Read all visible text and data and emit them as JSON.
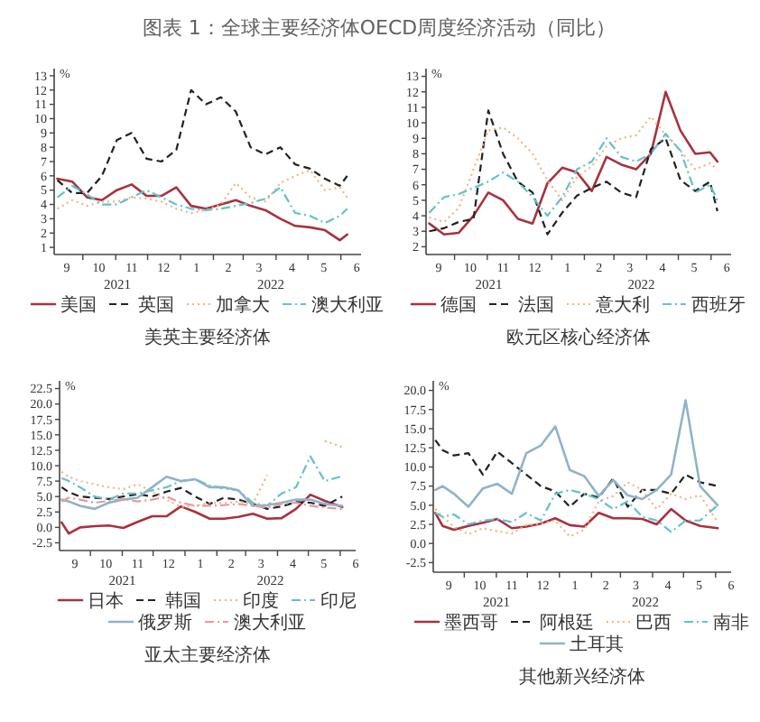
{
  "chart_data": [
    {
      "type": "other",
      "title": "图表 1：全球主要经济体OECD周度经济活动（同比）"
    },
    {
      "type": "line",
      "title": "美英主要经济体",
      "ylabel": "%",
      "legend": "bottom",
      "x": [
        "2021-09-07",
        "2021-09-21",
        "2021-10-05",
        "2021-10-19",
        "2021-11-02",
        "2021-11-16",
        "2021-11-30",
        "2021-12-14",
        "2021-12-28",
        "2022-01-11",
        "2022-01-25",
        "2022-02-08",
        "2022-02-22",
        "2022-03-08",
        "2022-03-22",
        "2022-04-05",
        "2022-04-19",
        "2022-05-03",
        "2022-05-17",
        "2022-05-31",
        "2022-06-07"
      ],
      "xlim": [
        "2021-09-04",
        "2022-06-20"
      ],
      "ylim": [
        0.5,
        13.5
      ],
      "yticks": [
        1,
        2,
        3,
        4,
        5,
        6,
        7,
        8,
        9,
        10,
        11,
        12,
        13
      ],
      "xticks": [
        {
          "value": "2021-09-16",
          "label": "9"
        },
        {
          "value": "2021-10-01",
          "label": null
        },
        {
          "value": "2021-10-16",
          "label": "10"
        },
        {
          "value": "2021-11-01",
          "label": null
        },
        {
          "value": "2021-11-16",
          "label": "11"
        },
        {
          "value": "2021-12-01",
          "label": null
        },
        {
          "value": "2021-12-16",
          "label": "12"
        },
        {
          "value": "2022-01-01",
          "label": null
        },
        {
          "value": "2022-01-16",
          "label": "1"
        },
        {
          "value": "2022-02-01",
          "label": null
        },
        {
          "value": "2022-02-15",
          "label": "2"
        },
        {
          "value": "2022-03-01",
          "label": null
        },
        {
          "value": "2022-03-16",
          "label": "3"
        },
        {
          "value": "2022-04-01",
          "label": null
        },
        {
          "value": "2022-04-16",
          "label": "4"
        },
        {
          "value": "2022-05-01",
          "label": null
        },
        {
          "value": "2022-05-16",
          "label": "5"
        },
        {
          "value": "2022-06-01",
          "label": null
        },
        {
          "value": "2022-06-16",
          "label": "6"
        }
      ],
      "annotations": [
        "2021",
        "2022"
      ],
      "series": [
        {
          "name": "美国",
          "color": "#a8323e",
          "line_style": "solid",
          "values": [
            5.8,
            5.6,
            4.5,
            4.3,
            5.0,
            5.4,
            4.6,
            4.6,
            5.2,
            3.9,
            3.7,
            4.0,
            4.3,
            3.9,
            3.6,
            3.0,
            2.5,
            2.4,
            2.2,
            1.5,
            1.9
          ]
        },
        {
          "name": "英国",
          "color": "#222222",
          "line_style": "dashed",
          "values": [
            5.7,
            4.8,
            4.8,
            6.0,
            8.5,
            9.0,
            7.2,
            7.0,
            7.8,
            12.0,
            11.0,
            11.5,
            10.5,
            8.0,
            7.5,
            8.0,
            6.8,
            6.5,
            5.8,
            5.3,
            6.0
          ]
        },
        {
          "name": "加拿大",
          "color": "#f2b47e",
          "line_style": "dotted",
          "values": [
            3.7,
            4.3,
            3.9,
            4.2,
            4.2,
            4.5,
            4.4,
            4.2,
            3.7,
            3.4,
            3.6,
            4.0,
            5.5,
            4.5,
            4.2,
            5.5,
            6.0,
            6.4,
            5.0,
            5.2,
            4.5
          ]
        },
        {
          "name": "澳大利亚",
          "color": "#62c3c9",
          "line_style": "dashdot",
          "values": [
            4.5,
            5.3,
            4.7,
            4.0,
            4.0,
            4.5,
            5.0,
            4.5,
            4.0,
            3.7,
            3.6,
            3.7,
            3.9,
            4.1,
            4.4,
            5.2,
            3.4,
            3.2,
            2.7,
            3.2,
            3.7
          ]
        }
      ]
    },
    {
      "type": "line",
      "title": "欧元区核心经济体",
      "ylabel": "%",
      "legend": "bottom",
      "x": [
        "2021-09-07",
        "2021-09-21",
        "2021-10-05",
        "2021-10-19",
        "2021-11-02",
        "2021-11-16",
        "2021-11-30",
        "2021-12-14",
        "2021-12-28",
        "2022-01-11",
        "2022-01-25",
        "2022-02-08",
        "2022-02-22",
        "2022-03-08",
        "2022-03-22",
        "2022-04-05",
        "2022-04-19",
        "2022-05-03",
        "2022-05-17",
        "2022-05-31",
        "2022-06-07"
      ],
      "xlim": [
        "2021-09-04",
        "2022-06-20"
      ],
      "ylim": [
        1.5,
        13.5
      ],
      "yticks": [
        2,
        3,
        4,
        5,
        6,
        7,
        8,
        9,
        10,
        11,
        12,
        13
      ],
      "xticks": [
        {
          "value": "2021-09-16",
          "label": "9"
        },
        {
          "value": "2021-10-01",
          "label": null
        },
        {
          "value": "2021-10-16",
          "label": "10"
        },
        {
          "value": "2021-11-01",
          "label": null
        },
        {
          "value": "2021-11-16",
          "label": "11"
        },
        {
          "value": "2021-12-01",
          "label": null
        },
        {
          "value": "2021-12-16",
          "label": "12"
        },
        {
          "value": "2022-01-01",
          "label": null
        },
        {
          "value": "2022-01-16",
          "label": "1"
        },
        {
          "value": "2022-02-01",
          "label": null
        },
        {
          "value": "2022-02-15",
          "label": "2"
        },
        {
          "value": "2022-03-01",
          "label": null
        },
        {
          "value": "2022-03-16",
          "label": "3"
        },
        {
          "value": "2022-04-01",
          "label": null
        },
        {
          "value": "2022-04-16",
          "label": "4"
        },
        {
          "value": "2022-05-01",
          "label": null
        },
        {
          "value": "2022-05-16",
          "label": "5"
        },
        {
          "value": "2022-06-01",
          "label": null
        },
        {
          "value": "2022-06-16",
          "label": "6"
        }
      ],
      "annotations": [
        "2021",
        "2022"
      ],
      "series": [
        {
          "name": "德国",
          "color": "#a8323e",
          "line_style": "solid",
          "values": [
            3.5,
            2.8,
            2.9,
            4.0,
            5.5,
            5.0,
            3.8,
            3.5,
            6.1,
            7.1,
            6.8,
            5.6,
            7.8,
            7.3,
            7.0,
            8.0,
            12.0,
            9.5,
            8.0,
            8.1,
            7.5
          ]
        },
        {
          "name": "法国",
          "color": "#222222",
          "line_style": "dashed",
          "values": [
            3.0,
            3.2,
            3.6,
            3.8,
            10.8,
            8.0,
            6.2,
            5.5,
            2.8,
            4.2,
            5.3,
            5.8,
            6.2,
            5.5,
            5.2,
            8.3,
            9.0,
            6.3,
            5.6,
            6.2,
            4.3
          ]
        },
        {
          "name": "意大利",
          "color": "#f2b47e",
          "line_style": "dotted",
          "values": [
            3.9,
            3.6,
            4.5,
            7.0,
            9.5,
            9.7,
            9.0,
            8.0,
            6.3,
            5.0,
            6.5,
            7.2,
            8.5,
            9.0,
            9.2,
            10.4,
            9.2,
            8.2,
            7.0,
            7.4,
            7.0
          ]
        },
        {
          "name": "西班牙",
          "color": "#62c3c9",
          "line_style": "dashdot",
          "values": [
            4.2,
            5.2,
            5.4,
            5.8,
            6.2,
            6.8,
            6.2,
            5.2,
            4.0,
            5.2,
            7.0,
            7.5,
            9.0,
            7.8,
            7.5,
            8.0,
            9.3,
            8.2,
            5.5,
            6.0,
            5.0
          ]
        }
      ]
    },
    {
      "type": "line",
      "title": "亚太主要经济体",
      "ylabel": "%",
      "legend": "bottom",
      "x": [
        "2021-09-03",
        "2021-09-10",
        "2021-09-21",
        "2021-10-05",
        "2021-10-19",
        "2021-11-02",
        "2021-11-16",
        "2021-11-30",
        "2021-12-14",
        "2021-12-28",
        "2022-01-11",
        "2022-01-25",
        "2022-02-08",
        "2022-02-22",
        "2022-03-08",
        "2022-03-22",
        "2022-04-05",
        "2022-04-19",
        "2022-05-03",
        "2022-05-17",
        "2022-06-03"
      ],
      "xlim": [
        "2021-09-01",
        "2022-06-16"
      ],
      "ylim": [
        -3.75,
        23.75
      ],
      "yticks": [
        {
          "value": -2.5,
          "label": "-2.5"
        },
        {
          "value": 0,
          "label": "0.0"
        },
        {
          "value": 2.5,
          "label": "2.5"
        },
        {
          "value": 5,
          "label": "5.0"
        },
        {
          "value": 7.5,
          "label": "7.5"
        },
        {
          "value": 10,
          "label": "10.0"
        },
        {
          "value": 12.5,
          "label": "12.5"
        },
        {
          "value": 15,
          "label": "15.0"
        },
        {
          "value": 17.5,
          "label": "17.5"
        },
        {
          "value": 20,
          "label": "20.0"
        },
        {
          "value": 22.5,
          "label": "22.5"
        }
      ],
      "xticks": [
        {
          "value": "2021-09-16",
          "label": "9"
        },
        {
          "value": "2021-10-01",
          "label": null
        },
        {
          "value": "2021-10-16",
          "label": "10"
        },
        {
          "value": "2021-11-01",
          "label": null
        },
        {
          "value": "2021-11-16",
          "label": "11"
        },
        {
          "value": "2021-12-01",
          "label": null
        },
        {
          "value": "2021-12-16",
          "label": "12"
        },
        {
          "value": "2022-01-01",
          "label": null
        },
        {
          "value": "2022-01-16",
          "label": "1"
        },
        {
          "value": "2022-02-01",
          "label": null
        },
        {
          "value": "2022-02-15",
          "label": "2"
        },
        {
          "value": "2022-03-01",
          "label": null
        },
        {
          "value": "2022-03-16",
          "label": "3"
        },
        {
          "value": "2022-04-01",
          "label": null
        },
        {
          "value": "2022-04-16",
          "label": "4"
        },
        {
          "value": "2022-05-01",
          "label": null
        },
        {
          "value": "2022-05-16",
          "label": "5"
        },
        {
          "value": "2022-06-01",
          "label": null
        },
        {
          "value": "2022-06-16",
          "label": "6"
        }
      ],
      "annotations": [
        "2021",
        "2022"
      ],
      "series": [
        {
          "name": "日本",
          "color": "#a8323e",
          "line_style": "solid",
          "values": [
            0.8,
            -1.0,
            0.0,
            0.2,
            0.3,
            -0.1,
            0.9,
            1.8,
            1.8,
            3.4,
            2.5,
            1.4,
            1.4,
            1.7,
            2.2,
            1.4,
            1.5,
            3.0,
            5.3,
            4.3,
            3.3
          ]
        },
        {
          "name": "韩国",
          "color": "#222222",
          "line_style": "dashed",
          "values": [
            6.5,
            5.7,
            5.0,
            4.8,
            4.6,
            5.0,
            5.4,
            5.0,
            5.8,
            6.4,
            5.0,
            3.8,
            4.8,
            4.5,
            3.8,
            3.0,
            3.4,
            4.1,
            4.0,
            3.5,
            5.0
          ]
        },
        {
          "name": "印度",
          "color": "#f2b47e",
          "line_style": "dotted",
          "values": [
            9.0,
            8.2,
            7.5,
            7.0,
            6.5,
            6.2,
            7.0,
            5.8,
            4.5,
            3.3,
            3.5,
            4.0,
            3.9,
            4.2,
            3.8,
            8.5,
            null,
            null,
            null,
            14.0,
            13.0
          ]
        },
        {
          "name": "印尼",
          "color": "#62c3c9",
          "line_style": "dashdot",
          "values": [
            8.0,
            7.5,
            6.5,
            5.0,
            4.5,
            5.5,
            5.5,
            6.0,
            6.5,
            7.5,
            7.8,
            6.8,
            6.3,
            6.0,
            4.0,
            3.5,
            5.5,
            6.5,
            11.5,
            7.5,
            8.3
          ]
        },
        {
          "name": "俄罗斯",
          "color": "#8fb3c9",
          "line_style": "solid",
          "values": [
            4.5,
            4.2,
            3.5,
            3.0,
            4.0,
            4.5,
            4.8,
            6.5,
            8.2,
            7.5,
            7.8,
            6.5,
            6.5,
            6.0,
            3.5,
            3.6,
            4.0,
            4.5,
            4.5,
            3.8,
            3.5
          ]
        },
        {
          "name": "澳大利亚",
          "color": "#e69a9a",
          "line_style": "dashdot",
          "values": [
            4.2,
            4.8,
            4.5,
            4.0,
            4.3,
            4.6,
            4.2,
            4.5,
            5.0,
            4.0,
            3.5,
            3.5,
            3.6,
            3.8,
            3.5,
            3.2,
            3.8,
            4.0,
            3.5,
            3.2,
            3.0
          ]
        }
      ]
    },
    {
      "type": "line",
      "title": "其他新兴经济体",
      "ylabel": "%",
      "legend": "bottom",
      "x": [
        "2021-09-03",
        "2021-09-10",
        "2021-09-21",
        "2021-10-05",
        "2021-10-19",
        "2021-11-02",
        "2021-11-16",
        "2021-11-30",
        "2021-12-14",
        "2021-12-28",
        "2022-01-11",
        "2022-01-25",
        "2022-02-08",
        "2022-02-22",
        "2022-03-08",
        "2022-03-22",
        "2022-04-05",
        "2022-04-19",
        "2022-05-03",
        "2022-05-17",
        "2022-06-03"
      ],
      "xlim": [
        "2021-09-01",
        "2022-06-16"
      ],
      "ylim": [
        -3.75,
        21.25
      ],
      "yticks": [
        {
          "value": -2.5,
          "label": "-2.5"
        },
        {
          "value": 0,
          "label": "0.0"
        },
        {
          "value": 2.5,
          "label": "2.5"
        },
        {
          "value": 5,
          "label": "5.0"
        },
        {
          "value": 7.5,
          "label": "7.5"
        },
        {
          "value": 10,
          "label": "10.0"
        },
        {
          "value": 12.5,
          "label": "12.5"
        },
        {
          "value": 15,
          "label": "15.0"
        },
        {
          "value": 17.5,
          "label": "17.5"
        },
        {
          "value": 20,
          "label": "20.0"
        }
      ],
      "xticks": [
        {
          "value": "2021-09-16",
          "label": "9"
        },
        {
          "value": "2021-10-01",
          "label": null
        },
        {
          "value": "2021-10-16",
          "label": "10"
        },
        {
          "value": "2021-11-01",
          "label": null
        },
        {
          "value": "2021-11-16",
          "label": "11"
        },
        {
          "value": "2021-12-01",
          "label": null
        },
        {
          "value": "2021-12-16",
          "label": "12"
        },
        {
          "value": "2022-01-01",
          "label": null
        },
        {
          "value": "2022-01-16",
          "label": "1"
        },
        {
          "value": "2022-02-01",
          "label": null
        },
        {
          "value": "2022-02-15",
          "label": "2"
        },
        {
          "value": "2022-03-01",
          "label": null
        },
        {
          "value": "2022-03-16",
          "label": "3"
        },
        {
          "value": "2022-04-01",
          "label": null
        },
        {
          "value": "2022-04-16",
          "label": "4"
        },
        {
          "value": "2022-05-01",
          "label": null
        },
        {
          "value": "2022-05-16",
          "label": "5"
        },
        {
          "value": "2022-06-01",
          "label": null
        },
        {
          "value": "2022-06-16",
          "label": "6"
        }
      ],
      "annotations": [
        "2021",
        "2022"
      ],
      "series": [
        {
          "name": "墨西哥",
          "color": "#a8323e",
          "line_style": "solid",
          "values": [
            4.0,
            2.3,
            1.8,
            2.3,
            2.7,
            3.2,
            2.0,
            2.2,
            2.6,
            3.3,
            2.4,
            2.2,
            4.0,
            3.3,
            3.3,
            3.2,
            2.5,
            4.5,
            3.0,
            2.3,
            2.0
          ]
        },
        {
          "name": "阿根廷",
          "color": "#222222",
          "line_style": "dashed",
          "values": [
            13.5,
            12.2,
            11.5,
            11.8,
            9.0,
            12.0,
            10.5,
            9.0,
            7.5,
            6.8,
            4.8,
            6.5,
            6.0,
            8.5,
            4.8,
            7.0,
            7.0,
            6.5,
            9.0,
            8.0,
            7.5
          ]
        },
        {
          "name": "巴西",
          "color": "#f2b47e",
          "line_style": "dotted",
          "values": [
            4.5,
            3.5,
            2.2,
            1.2,
            2.0,
            1.6,
            1.3,
            2.4,
            2.6,
            3.0,
            0.9,
            1.8,
            5.5,
            6.2,
            8.0,
            7.0,
            4.5,
            6.5,
            5.8,
            6.3,
            2.8
          ]
        },
        {
          "name": "南非",
          "color": "#62c3c9",
          "line_style": "dashdot",
          "values": [
            4.0,
            3.5,
            3.8,
            2.5,
            3.0,
            3.2,
            2.8,
            4.0,
            3.0,
            6.5,
            7.0,
            6.5,
            5.8,
            4.5,
            5.5,
            3.5,
            3.0,
            1.5,
            3.0,
            3.0,
            5.0
          ]
        },
        {
          "name": "土耳其",
          "color": "#8fb3c9",
          "line_style": "solid",
          "values": [
            7.0,
            7.5,
            6.5,
            4.8,
            7.2,
            7.8,
            6.5,
            11.8,
            12.8,
            15.3,
            9.6,
            8.8,
            6.2,
            8.3,
            6.3,
            5.8,
            7.0,
            9.0,
            18.7,
            7.5,
            5.0
          ]
        }
      ]
    }
  ]
}
